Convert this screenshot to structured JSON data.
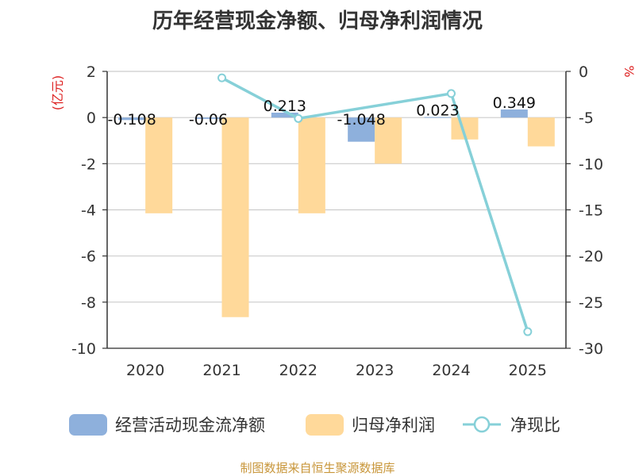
{
  "chart_data": {
    "type": "bar+line",
    "title": "历年经营现金净额、归母净利润情况",
    "categories": [
      "2020",
      "2021",
      "2022",
      "2023",
      "2024",
      "2025"
    ],
    "series": [
      {
        "name": "经营活动现金流净额",
        "kind": "bar",
        "axis": "left",
        "color": "#8eb0dc",
        "values": [
          -0.108,
          -0.06,
          0.213,
          -1.048,
          0.023,
          0.349
        ],
        "labels": [
          "-0.108",
          "-0.06",
          "0.213",
          "-1.048",
          "0.023",
          "0.349"
        ]
      },
      {
        "name": "归母净利润",
        "kind": "bar",
        "axis": "left",
        "color": "#ffd99a",
        "values": [
          -4.15,
          -8.65,
          -4.15,
          -2.0,
          -0.95,
          -1.25
        ]
      },
      {
        "name": "净现比",
        "kind": "line",
        "axis": "right",
        "color": "#86d0d8",
        "values": [
          null,
          -0.7,
          -5.1,
          null,
          -2.4,
          -28.2
        ]
      }
    ],
    "left_axis": {
      "label": "(亿元)",
      "ylim": [
        -10,
        2
      ],
      "ticks": [
        2,
        0,
        -2,
        -4,
        -6,
        -8,
        -10
      ]
    },
    "right_axis": {
      "label": "%",
      "ylim": [
        -30,
        0
      ],
      "ticks": [
        0,
        -5,
        -10,
        -15,
        -20,
        -25,
        -30
      ]
    },
    "legend": "bottom"
  },
  "footer": "制图数据来自恒生聚源数据库"
}
